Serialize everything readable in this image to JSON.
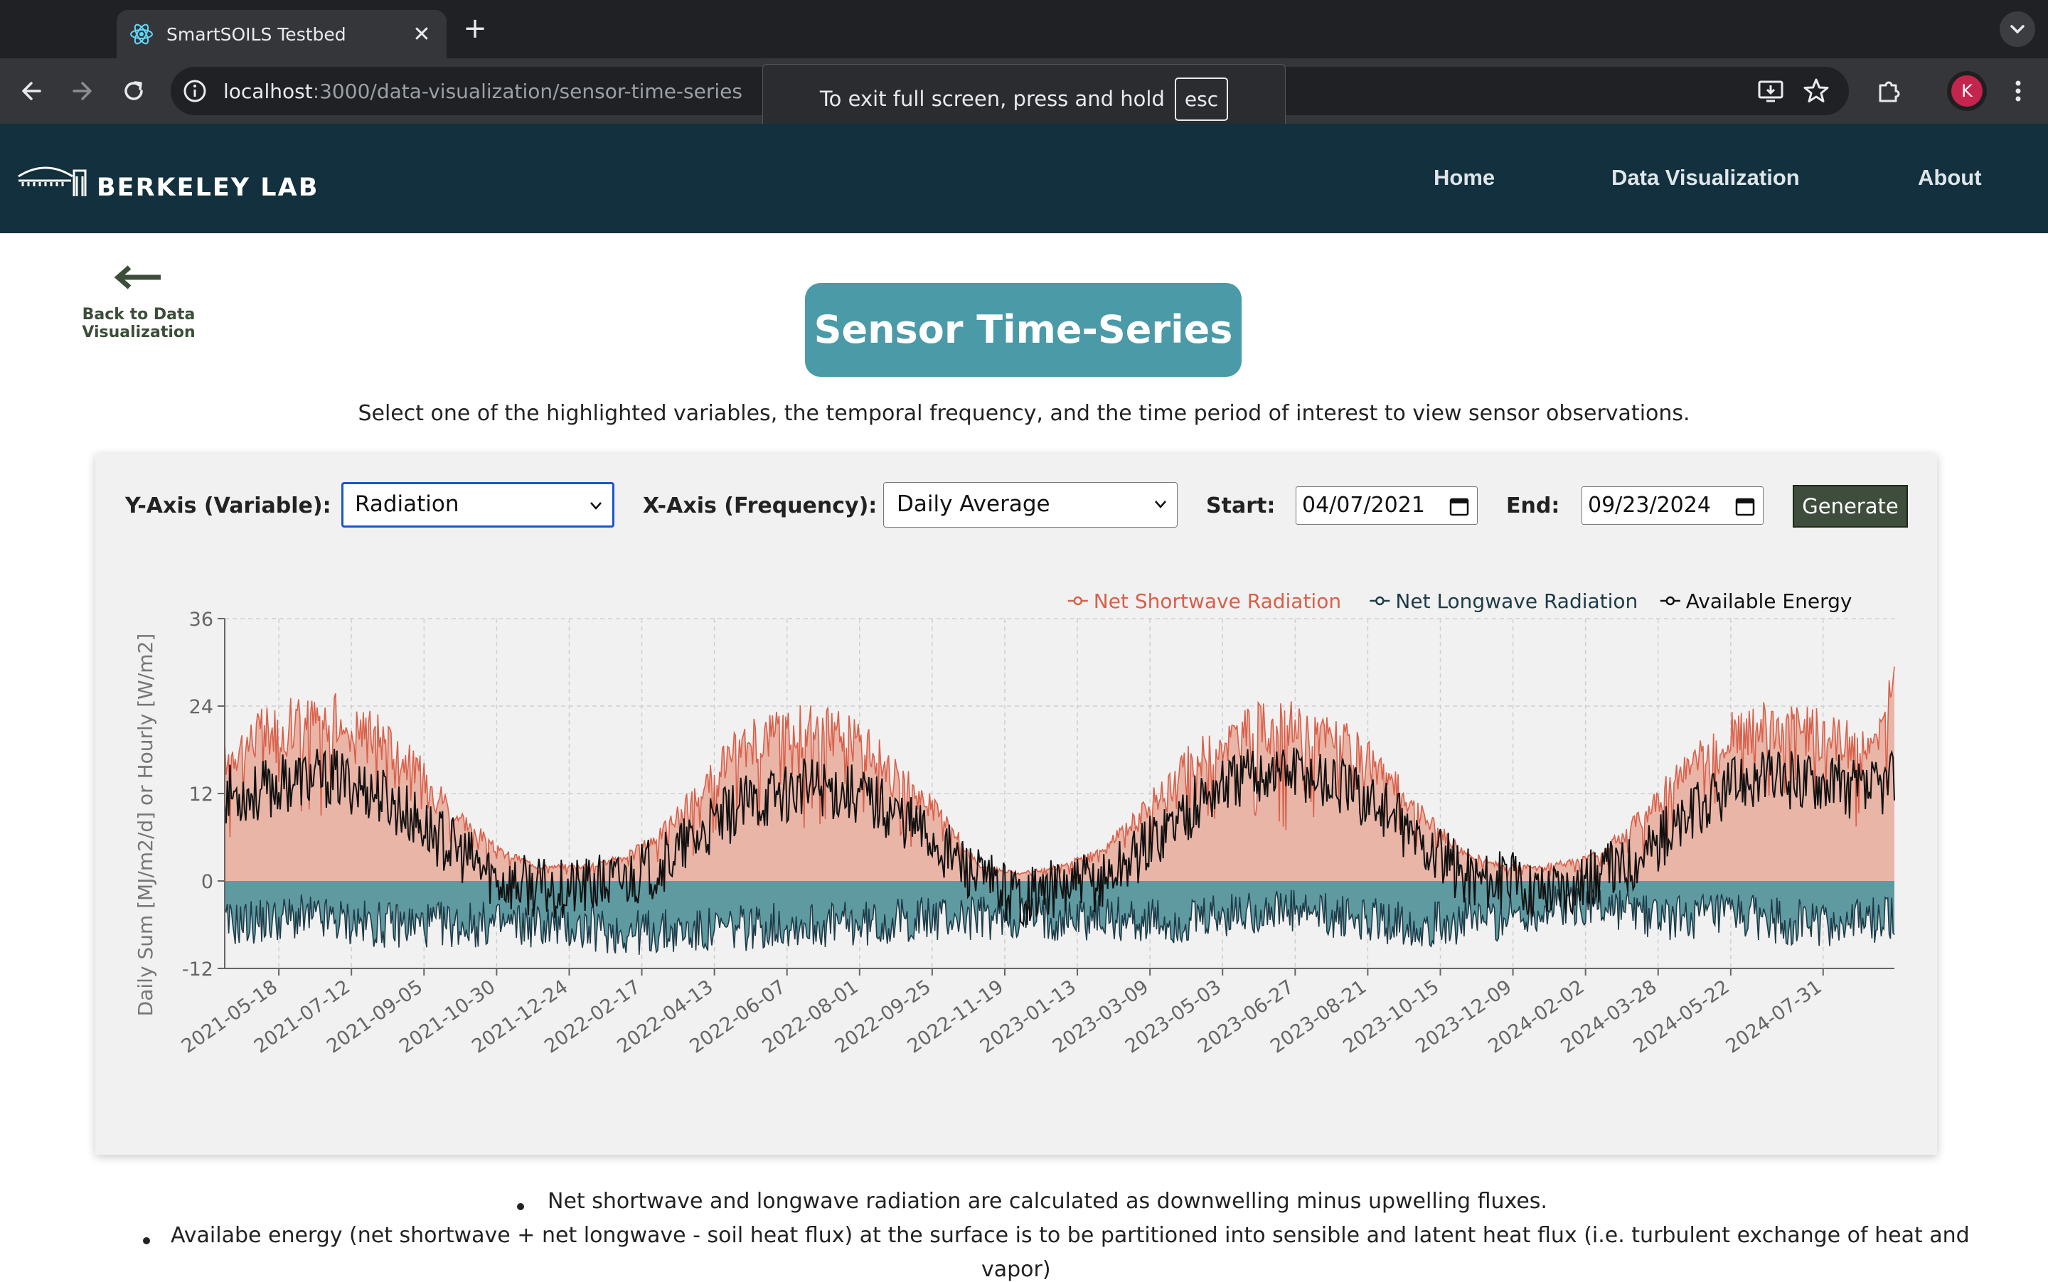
{
  "browser": {
    "tab_title": "SmartSOILS Testbed",
    "url_host": "localhost",
    "url_path": ":3000/data-visualization/sensor-time-series",
    "profile_initial": "K",
    "fullscreen_message": "To exit full screen, press and hold",
    "fullscreen_key": "esc"
  },
  "header": {
    "logo_text": "BERKELEY LAB",
    "nav": [
      "Home",
      "Data Visualization",
      "About"
    ]
  },
  "page": {
    "back_label": "Back to Data Visualization",
    "title": "Sensor Time-Series",
    "intro": "Select one of the highlighted variables, the temporal frequency, and the time period of interest to view sensor observations."
  },
  "controls": {
    "y_label": "Y-Axis (Variable):",
    "y_value": "Radiation",
    "x_label": "X-Axis (Frequency):",
    "x_value": "Daily Average",
    "start_label": "Start:",
    "start_value": "04/07/2021",
    "end_label": "End:",
    "end_value": "09/23/2024",
    "generate_label": "Generate"
  },
  "notes": [
    "Net shortwave and longwave radiation are calculated as downwelling minus upwelling fluxes.",
    "Availabe energy (net shortwave + net longwave - soil heat flux) at the surface is to be partitioned into sensible and latent heat flux (i.e. turbulent exchange of heat and",
    "vapor)"
  ],
  "colors": {
    "shortwave": "#d9604a",
    "shortwave_fill": "#e8b5a7",
    "longwave": "#1d3b48",
    "longwave_fill": "#5f9aa1",
    "energy": "#111111",
    "title_bg": "#4a9aa7",
    "header_bg": "#12303e"
  },
  "chart_data": {
    "type": "area",
    "ylabel": "Daily Sum [MJ/m2/d] or Hourly [W/m2]",
    "ylim": [
      -12,
      36
    ],
    "yticks": [
      36,
      24,
      12,
      0,
      -12
    ],
    "xlim": [
      "2021-04-07",
      "2024-09-23"
    ],
    "xticks": [
      "2021-05-18",
      "2021-07-12",
      "2021-09-05",
      "2021-10-30",
      "2021-12-24",
      "2022-02-17",
      "2022-04-13",
      "2022-06-07",
      "2022-08-01",
      "2022-09-25",
      "2022-11-19",
      "2023-01-13",
      "2023-03-09",
      "2023-05-03",
      "2023-06-27",
      "2023-08-21",
      "2023-10-15",
      "2023-12-09",
      "2024-02-02",
      "2024-03-28",
      "2024-05-22",
      "2024-07-31"
    ],
    "grid": true,
    "legend_position": "top-right",
    "series": [
      {
        "name": "Net Shortwave Radiation",
        "x": [
          "2021-04-07",
          "2021-05-01",
          "2021-06-01",
          "2021-07-01",
          "2021-08-01",
          "2021-09-01",
          "2021-10-01",
          "2021-11-01",
          "2021-12-01",
          "2022-01-01",
          "2022-02-01",
          "2022-03-01",
          "2022-04-01",
          "2022-05-01",
          "2022-06-01",
          "2022-07-01",
          "2022-08-01",
          "2022-09-01",
          "2022-10-01",
          "2022-11-01",
          "2022-12-01",
          "2023-01-01",
          "2023-02-01",
          "2023-03-01",
          "2023-04-01",
          "2023-05-01",
          "2023-06-01",
          "2023-07-01",
          "2023-08-01",
          "2023-09-01",
          "2023-10-01",
          "2023-11-01",
          "2023-12-01",
          "2024-01-01",
          "2024-02-01",
          "2024-03-01",
          "2024-04-01",
          "2024-05-01",
          "2024-06-01",
          "2024-07-01",
          "2024-08-01",
          "2024-09-01",
          "2024-09-23"
        ],
        "values": [
          17,
          20,
          22,
          22,
          20,
          15,
          9,
          4,
          2,
          2,
          3,
          6,
          12,
          18,
          21,
          21,
          19,
          14,
          9,
          2,
          1,
          2,
          4,
          9,
          15,
          19,
          21,
          21,
          19,
          15,
          9,
          4,
          2,
          2,
          3,
          6,
          12,
          17,
          21,
          21,
          20,
          18,
          26
        ]
      },
      {
        "name": "Net Longwave Radiation",
        "x": [
          "2021-04-07",
          "2021-06-01",
          "2021-08-01",
          "2021-10-01",
          "2021-12-01",
          "2022-02-01",
          "2022-04-01",
          "2022-06-01",
          "2022-08-01",
          "2022-10-01",
          "2022-12-01",
          "2023-02-01",
          "2023-04-01",
          "2023-06-01",
          "2023-08-01",
          "2023-10-01",
          "2023-12-01",
          "2024-02-01",
          "2024-04-01",
          "2024-06-01",
          "2024-08-01",
          "2024-09-23"
        ],
        "values": [
          -6,
          -5,
          -6,
          -6,
          -6,
          -7,
          -7,
          -6,
          -6,
          -5,
          -5,
          -5,
          -6,
          -4,
          -5,
          -6,
          -5,
          -3,
          -5,
          -5,
          -6,
          -5
        ]
      },
      {
        "name": "Available Energy",
        "x": [
          "2021-04-07",
          "2021-05-01",
          "2021-06-01",
          "2021-07-01",
          "2021-08-01",
          "2021-09-01",
          "2021-10-01",
          "2021-11-01",
          "2021-12-01",
          "2022-01-01",
          "2022-02-01",
          "2022-03-01",
          "2022-04-01",
          "2022-05-01",
          "2022-06-01",
          "2022-07-01",
          "2022-08-01",
          "2022-09-01",
          "2022-10-01",
          "2022-11-01",
          "2022-12-01",
          "2023-01-01",
          "2023-02-01",
          "2023-03-01",
          "2023-04-01",
          "2023-05-01",
          "2023-06-01",
          "2023-07-01",
          "2023-08-01",
          "2023-09-01",
          "2023-10-01",
          "2023-11-01",
          "2023-12-01",
          "2024-01-01",
          "2024-02-01",
          "2024-03-01",
          "2024-04-01",
          "2024-05-01",
          "2024-06-01",
          "2024-07-01",
          "2024-08-01",
          "2024-09-01",
          "2024-09-23"
        ],
        "values": [
          12,
          12,
          14,
          14,
          12,
          8,
          4,
          0,
          -1,
          -1,
          0,
          2,
          6,
          10,
          12,
          13,
          12,
          9,
          5,
          0,
          -2,
          -1,
          0,
          4,
          9,
          13,
          15,
          15,
          13,
          10,
          5,
          1,
          0,
          -1,
          0,
          2,
          6,
          10,
          14,
          14,
          14,
          12,
          14
        ]
      }
    ]
  }
}
